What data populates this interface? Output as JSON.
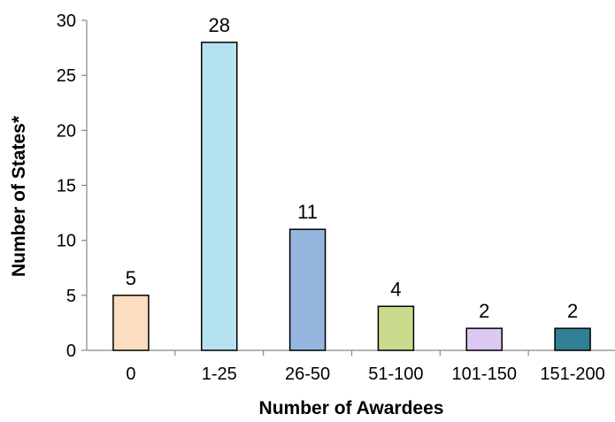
{
  "chart_data": {
    "type": "bar",
    "categories": [
      "0",
      "1-25",
      "26-50",
      "51-100",
      "101-150",
      "151-200"
    ],
    "values": [
      5,
      28,
      11,
      4,
      2,
      2
    ],
    "data_labels": [
      "5",
      "28",
      "11",
      "4",
      "2",
      "2"
    ],
    "bar_colors": [
      "#FCDDBF",
      "#B5E2EF",
      "#95B5DF",
      "#C9DB8D",
      "#DCC8F3",
      "#2F7F95"
    ],
    "xlabel": "Number of Awardees",
    "ylabel": "Number of States*",
    "ylim": [
      0,
      30
    ],
    "y_ticks": [
      "0",
      "5",
      "10",
      "15",
      "20",
      "25",
      "30"
    ],
    "grid": false,
    "legend": "none"
  }
}
